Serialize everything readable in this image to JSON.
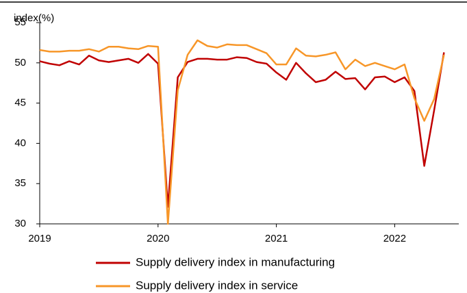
{
  "chart_data": {
    "type": "line",
    "y_label": "index(%)",
    "categories": [
      "2019",
      null,
      null,
      null,
      null,
      null,
      null,
      null,
      null,
      null,
      null,
      null,
      "2020",
      null,
      null,
      null,
      null,
      null,
      null,
      null,
      null,
      null,
      null,
      null,
      "2021",
      null,
      null,
      null,
      null,
      null,
      null,
      null,
      null,
      null,
      null,
      null,
      "2022",
      null,
      null,
      null,
      null,
      null
    ],
    "series": [
      {
        "name": "Supply delivery index in manufacturing",
        "color": "#c00000",
        "values": [
          50.2,
          49.9,
          49.7,
          50.2,
          49.8,
          50.9,
          50.3,
          50.1,
          50.3,
          50.5,
          50.0,
          51.1,
          49.9,
          32.1,
          48.2,
          50.1,
          50.5,
          50.5,
          50.4,
          50.4,
          50.7,
          50.6,
          50.1,
          49.9,
          48.8,
          47.9,
          50.0,
          48.7,
          47.6,
          47.9,
          48.9,
          48.0,
          48.1,
          46.7,
          48.2,
          48.3,
          47.6,
          48.2,
          46.5,
          37.2,
          44.1,
          51.3
        ]
      },
      {
        "name": "Supply delivery index in service",
        "color": "#f79628",
        "values": [
          51.6,
          51.4,
          51.4,
          51.5,
          51.5,
          51.7,
          51.4,
          52.0,
          52.0,
          51.8,
          51.7,
          52.1,
          52.0,
          30.0,
          46.6,
          51.0,
          52.8,
          52.1,
          51.9,
          52.3,
          52.2,
          52.2,
          51.7,
          51.2,
          49.8,
          49.8,
          51.8,
          50.9,
          50.8,
          51.0,
          51.3,
          49.2,
          50.4,
          49.6,
          50.0,
          49.6,
          49.2,
          49.8,
          45.6,
          42.8,
          45.5,
          51.0
        ]
      }
    ],
    "ylim": [
      30,
      55
    ],
    "yticks": [
      30,
      35,
      40,
      45,
      50,
      55
    ],
    "grid": false
  }
}
